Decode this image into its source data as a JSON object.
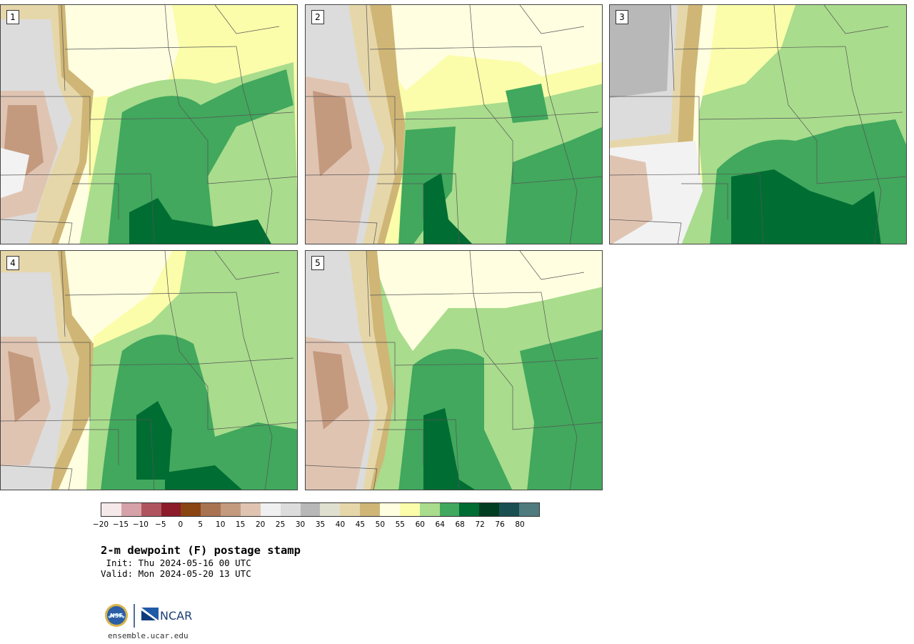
{
  "panels": [
    {
      "label": "1",
      "variant": 1
    },
    {
      "label": "2",
      "variant": 2
    },
    {
      "label": "3",
      "variant": 3
    },
    {
      "label": "4",
      "variant": 4
    },
    {
      "label": "5",
      "variant": 5
    }
  ],
  "colorbar": {
    "colors": [
      "#f6e9ea",
      "#d6a1a8",
      "#b0555f",
      "#8c1c2a",
      "#8b4512",
      "#a87350",
      "#c49a7f",
      "#e0c4b2",
      "#f0f0f0",
      "#dcdcdc",
      "#b8b8b8",
      "#e0e0d0",
      "#e6d7aa",
      "#cfb676",
      "#fffee0",
      "#fbfdaa",
      "#a9dc8d",
      "#41a85d",
      "#006d33",
      "#003e22",
      "#1a4f52",
      "#4f7b7f"
    ],
    "ticks": [
      "−20",
      "−15",
      "−10",
      "−5",
      "0",
      "5",
      "10",
      "15",
      "20",
      "25",
      "30",
      "35",
      "40",
      "45",
      "50",
      "55",
      "60",
      "64",
      "68",
      "72",
      "76",
      "80"
    ]
  },
  "title": "2-m dewpoint (F) postage stamp",
  "init": " Init: Thu 2024-05-16 00 UTC",
  "valid": "Valid: Mon 2024-05-20 13 UTC",
  "logos": {
    "nsf": "NSF",
    "ncar": "NCAR"
  },
  "site": "ensemble.ucar.edu"
}
